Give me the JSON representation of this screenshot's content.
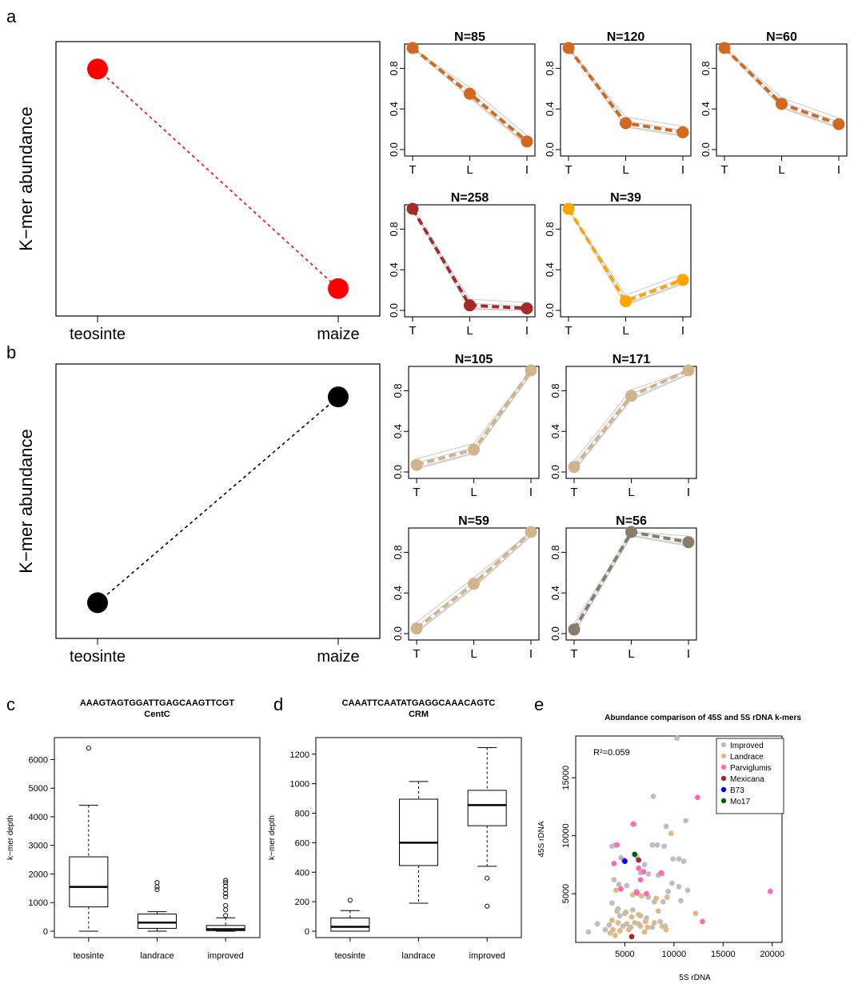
{
  "panel_letters": {
    "a": "a",
    "b": "b",
    "c": "c",
    "d": "d",
    "e": "e"
  },
  "colors": {
    "red": "#ff0000",
    "orange": "#d2691e",
    "darkred": "#a52a2a",
    "gold": "#ffa500",
    "tan": "#d2b48c",
    "taupe": "#8b7d6b",
    "trajectory_gray": "#c8c8c8"
  },
  "chart_data": [
    {
      "id": "a_main",
      "type": "line",
      "ylabel": "K−mer abundance",
      "categories": [
        "teosinte",
        "maize"
      ],
      "values": [
        0.9,
        0.1
      ],
      "color": "#ff0000",
      "line_style": "dotted"
    },
    {
      "id": "a1",
      "type": "line",
      "title": "N=85",
      "categories": [
        "T",
        "L",
        "I"
      ],
      "values": [
        1.0,
        0.55,
        0.08
      ],
      "color": "#d2691e",
      "yticks": [
        "0.0",
        "0.4",
        "0.8"
      ],
      "ylim": [
        0,
        1
      ]
    },
    {
      "id": "a2",
      "type": "line",
      "title": "N=120",
      "categories": [
        "T",
        "L",
        "I"
      ],
      "values": [
        1.0,
        0.26,
        0.17
      ],
      "color": "#d2691e",
      "yticks": [
        "0.0",
        "0.4",
        "0.8"
      ],
      "ylim": [
        0,
        1
      ]
    },
    {
      "id": "a3",
      "type": "line",
      "title": "N=60",
      "categories": [
        "T",
        "L",
        "I"
      ],
      "values": [
        1.0,
        0.45,
        0.25
      ],
      "color": "#d2691e",
      "yticks": [
        "0.0",
        "0.4",
        "0.8"
      ],
      "ylim": [
        0,
        1
      ]
    },
    {
      "id": "a4",
      "type": "line",
      "title": "N=258",
      "categories": [
        "T",
        "L",
        "I"
      ],
      "values": [
        1.0,
        0.05,
        0.02
      ],
      "color": "#a52a2a",
      "yticks": [
        "0.0",
        "0.4",
        "0.8"
      ],
      "ylim": [
        0,
        1
      ]
    },
    {
      "id": "a5",
      "type": "line",
      "title": "N=39",
      "categories": [
        "T",
        "L",
        "I"
      ],
      "values": [
        1.0,
        0.09,
        0.3
      ],
      "color": "#ffa500",
      "yticks": [
        "0.0",
        "0.4",
        "0.8"
      ],
      "ylim": [
        0,
        1
      ]
    },
    {
      "id": "b_main",
      "type": "line",
      "ylabel": "K−mer abundance",
      "categories": [
        "teosinte",
        "maize"
      ],
      "values": [
        0.13,
        0.88
      ],
      "color": "#000000",
      "line_style": "dotted"
    },
    {
      "id": "b1",
      "type": "line",
      "title": "N=105",
      "categories": [
        "T",
        "L",
        "I"
      ],
      "values": [
        0.07,
        0.22,
        1.0
      ],
      "color": "#d2b48c",
      "yticks": [
        "0.0",
        "0.4",
        "0.8"
      ],
      "ylim": [
        0,
        1
      ]
    },
    {
      "id": "b2",
      "type": "line",
      "title": "N=171",
      "categories": [
        "T",
        "L",
        "I"
      ],
      "values": [
        0.05,
        0.75,
        1.0
      ],
      "color": "#d2b48c",
      "yticks": [
        "0.0",
        "0.4",
        "0.8"
      ],
      "ylim": [
        0,
        1
      ]
    },
    {
      "id": "b3",
      "type": "line",
      "title": "N=59",
      "categories": [
        "T",
        "L",
        "I"
      ],
      "values": [
        0.05,
        0.49,
        1.0
      ],
      "color": "#d2b48c",
      "yticks": [
        "0.0",
        "0.4",
        "0.8"
      ],
      "ylim": [
        0,
        1
      ]
    },
    {
      "id": "b4",
      "type": "line",
      "title": "N=56",
      "categories": [
        "T",
        "L",
        "I"
      ],
      "values": [
        0.04,
        1.0,
        0.9
      ],
      "color": "#8b7d6b",
      "yticks": [
        "0.0",
        "0.4",
        "0.8"
      ],
      "ylim": [
        0,
        1
      ]
    },
    {
      "id": "c",
      "type": "box",
      "title": "AAAGTAGTGGATTGAGCAAGTTCGT",
      "subtitle": "CentC",
      "ylabel": "k−mer depth",
      "categories": [
        "teosinte",
        "landrace",
        "improved"
      ],
      "ylim": [
        0,
        6600
      ],
      "yticks": [
        0,
        1000,
        2000,
        3000,
        4000,
        5000,
        6000
      ],
      "boxes": [
        {
          "min": 0,
          "q1": 850,
          "median": 1550,
          "q3": 2600,
          "max": 4400,
          "outliers": [
            6400
          ]
        },
        {
          "min": 0,
          "q1": 100,
          "median": 300,
          "q3": 600,
          "max": 680,
          "outliers": [
            1450,
            1550,
            1700
          ]
        },
        {
          "min": 0,
          "q1": 20,
          "median": 70,
          "q3": 200,
          "max": 470,
          "outliers": [
            550,
            750,
            900,
            1200,
            1320,
            1450,
            1580,
            1700,
            1780
          ]
        }
      ]
    },
    {
      "id": "d",
      "type": "box",
      "title": "CAAATTCAATATGAGGCAAACAGTC",
      "subtitle": "CRM",
      "ylabel": "k−mer depth",
      "categories": [
        "teosinte",
        "landrace",
        "improved"
      ],
      "ylim": [
        0,
        1280
      ],
      "yticks": [
        0,
        200,
        400,
        600,
        800,
        1000,
        1200
      ],
      "boxes": [
        {
          "min": 0,
          "q1": 0,
          "median": 30,
          "q3": 90,
          "max": 140,
          "outliers": [
            210
          ]
        },
        {
          "min": 190,
          "q1": 445,
          "median": 600,
          "q3": 895,
          "max": 1015,
          "outliers": []
        },
        {
          "min": 440,
          "q1": 715,
          "median": 855,
          "q3": 955,
          "max": 1245,
          "outliers": [
            360,
            170
          ]
        }
      ]
    },
    {
      "id": "e",
      "type": "scatter",
      "title": "Abundance comparison of 45S and 5S rDNA k-mers",
      "xlabel": "5S rDNA",
      "ylabel": "45S rDNA",
      "xlim": [
        0,
        21000
      ],
      "ylim": [
        800,
        18600
      ],
      "xticks": [
        5000,
        10000,
        15000,
        20000
      ],
      "yticks": [
        5000,
        10000,
        15000
      ],
      "annotation": "R²=0.059",
      "legend_position": "top-right",
      "series": [
        {
          "name": "Improved",
          "color": "#bebebe",
          "points": [
            [
              10300,
              18400
            ],
            [
              7900,
              13400
            ],
            [
              11200,
              11300
            ],
            [
              9200,
              10800
            ],
            [
              5800,
              11000
            ],
            [
              3700,
              9100
            ],
            [
              4000,
              9200
            ],
            [
              4600,
              8100
            ],
            [
              6200,
              8200
            ],
            [
              7000,
              7500
            ],
            [
              7800,
              9200
            ],
            [
              8300,
              9200
            ],
            [
              9000,
              9100
            ],
            [
              9900,
              8000
            ],
            [
              10500,
              8000
            ],
            [
              11000,
              7800
            ],
            [
              6600,
              6800
            ],
            [
              7400,
              6700
            ],
            [
              8400,
              6600
            ],
            [
              8800,
              6700
            ],
            [
              9800,
              5900
            ],
            [
              10500,
              5600
            ],
            [
              11400,
              5300
            ],
            [
              3900,
              6200
            ],
            [
              4400,
              5800
            ],
            [
              5200,
              5700
            ],
            [
              6200,
              5200
            ],
            [
              7400,
              4700
            ],
            [
              8000,
              4300
            ],
            [
              8900,
              4300
            ],
            [
              10700,
              4400
            ],
            [
              3700,
              4200
            ],
            [
              4300,
              3700
            ],
            [
              5000,
              3300
            ],
            [
              5800,
              3600
            ],
            [
              6600,
              3100
            ],
            [
              7200,
              2900
            ],
            [
              8600,
              2600
            ],
            [
              9100,
              2200
            ],
            [
              2200,
              2400
            ],
            [
              3400,
              2300
            ],
            [
              4800,
              2200
            ],
            [
              5600,
              2100
            ],
            [
              6400,
              2400
            ],
            [
              7800,
              2100
            ],
            [
              1300,
              1700
            ],
            [
              3000,
              1900
            ],
            [
              4500,
              3100
            ],
            [
              9400,
              5200
            ]
          ]
        },
        {
          "name": "Landrace",
          "color": "#deb887",
          "points": [
            [
              9700,
              10200
            ],
            [
              4100,
              5300
            ],
            [
              5800,
              4900
            ],
            [
              6300,
              5000
            ],
            [
              6700,
              4800
            ],
            [
              8200,
              4600
            ],
            [
              9300,
              4700
            ],
            [
              4200,
              3500
            ],
            [
              5100,
              3400
            ],
            [
              5700,
              3000
            ],
            [
              6400,
              3200
            ],
            [
              7100,
              2600
            ],
            [
              8000,
              2500
            ],
            [
              3700,
              2700
            ],
            [
              4300,
              2500
            ],
            [
              5200,
              2400
            ],
            [
              6000,
              2500
            ],
            [
              6600,
              2200
            ],
            [
              7300,
              2100
            ],
            [
              8800,
              2200
            ],
            [
              3800,
              1900
            ],
            [
              4500,
              1800
            ],
            [
              5400,
              1900
            ],
            [
              7000,
              1700
            ],
            [
              9200,
              1900
            ],
            [
              12200,
              3300
            ],
            [
              3500,
              1600
            ],
            [
              4000,
              1400
            ],
            [
              8400,
              3500
            ]
          ]
        },
        {
          "name": "Parviglumis",
          "color": "#ff69b4",
          "points": [
            [
              12400,
              13300
            ],
            [
              4200,
              9200
            ],
            [
              5900,
              11000
            ],
            [
              3900,
              7600
            ],
            [
              4900,
              7900
            ],
            [
              6400,
              7200
            ],
            [
              6900,
              6900
            ],
            [
              6600,
              6200
            ],
            [
              8700,
              6800
            ],
            [
              4600,
              5400
            ],
            [
              6200,
              5100
            ],
            [
              7200,
              5000
            ],
            [
              19800,
              5200
            ],
            [
              12900,
              2600
            ]
          ]
        },
        {
          "name": "Mexicana",
          "color": "#a52a2a",
          "points": [
            [
              6400,
              7900
            ],
            [
              5700,
              1300
            ]
          ]
        },
        {
          "name": "B73",
          "color": "#0000ff",
          "points": [
            [
              5000,
              7800
            ]
          ]
        },
        {
          "name": "Mo17",
          "color": "#006400",
          "points": [
            [
              6000,
              8400
            ]
          ]
        }
      ]
    }
  ]
}
